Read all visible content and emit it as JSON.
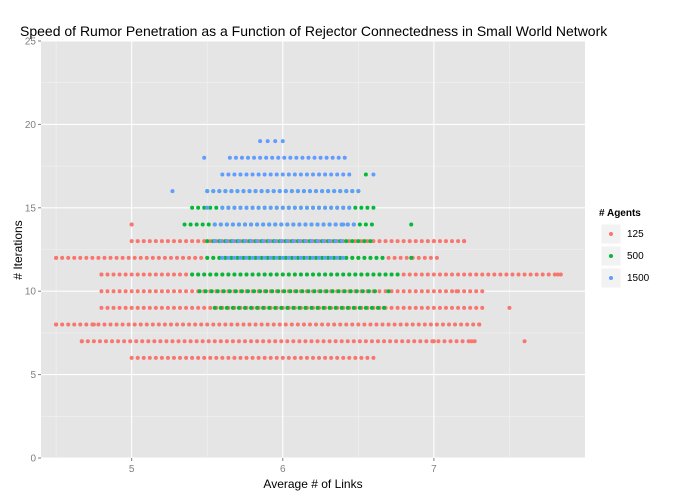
{
  "chart_data": {
    "type": "scatter",
    "title": "Speed of Rumor Penetration as a Function of Rejector Connectedness in Small World Network",
    "xlabel": "Average # of Links",
    "ylabel": "# Iterations",
    "xlim": [
      4.4,
      8.0
    ],
    "ylim": [
      0,
      25
    ],
    "x_ticks": [
      5,
      6,
      7
    ],
    "y_ticks": [
      0,
      5,
      10,
      15,
      20,
      25
    ],
    "grid": true,
    "legend": {
      "title": "# Agents",
      "placement": "right",
      "entries": [
        "125",
        "500",
        "1500"
      ]
    },
    "series": [
      {
        "name": "125",
        "color": "#F8766D",
        "bands": [
          {
            "y": 6,
            "x0": 5.0,
            "x1": 6.58
          },
          {
            "y": 7,
            "x0": 4.67,
            "x1": 7.25
          },
          {
            "y": 8,
            "x0": 4.5,
            "x1": 7.3
          },
          {
            "y": 9,
            "x0": 4.8,
            "x1": 7.3
          },
          {
            "y": 10,
            "x0": 4.8,
            "x1": 7.3
          },
          {
            "y": 11,
            "x0": 4.8,
            "x1": 7.82
          },
          {
            "y": 12,
            "x0": 4.5,
            "x1": 7.0
          },
          {
            "y": 13,
            "x0": 5.0,
            "x1": 7.2
          },
          {
            "y": 14,
            "x0": 5.0,
            "x1": 5.0
          }
        ],
        "points": [
          {
            "x": 4.5,
            "y": 12
          },
          {
            "x": 4.5,
            "y": 8
          },
          {
            "x": 4.67,
            "y": 7
          },
          {
            "x": 4.75,
            "y": 8
          },
          {
            "x": 4.8,
            "y": 11
          },
          {
            "x": 5.0,
            "y": 14
          },
          {
            "x": 7.0,
            "y": 13
          },
          {
            "x": 7.2,
            "y": 13
          },
          {
            "x": 7.82,
            "y": 11
          },
          {
            "x": 7.5,
            "y": 9
          },
          {
            "x": 7.6,
            "y": 7
          },
          {
            "x": 7.25,
            "y": 7
          },
          {
            "x": 7.15,
            "y": 10
          },
          {
            "x": 7.3,
            "y": 8
          },
          {
            "x": 7.0,
            "y": 7
          }
        ]
      },
      {
        "name": "500",
        "color": "#00BA38",
        "bands": [
          {
            "y": 9,
            "x0": 5.55,
            "x1": 6.65
          },
          {
            "y": 10,
            "x0": 5.45,
            "x1": 6.6
          },
          {
            "y": 11,
            "x0": 5.4,
            "x1": 6.75
          },
          {
            "y": 12,
            "x0": 5.5,
            "x1": 6.65
          },
          {
            "y": 13,
            "x0": 5.5,
            "x1": 6.6
          },
          {
            "y": 14,
            "x0": 5.35,
            "x1": 6.6
          },
          {
            "y": 15,
            "x0": 5.4,
            "x1": 6.6
          },
          {
            "y": 16,
            "x0": 5.5,
            "x1": 6.5
          }
        ],
        "points": [
          {
            "x": 6.85,
            "y": 14
          },
          {
            "x": 6.55,
            "y": 17
          },
          {
            "x": 6.85,
            "y": 12
          },
          {
            "x": 6.7,
            "y": 10
          }
        ]
      },
      {
        "name": "1500",
        "color": "#619CFF",
        "bands": [
          {
            "y": 12,
            "x0": 5.6,
            "x1": 6.4
          },
          {
            "y": 13,
            "x0": 5.55,
            "x1": 6.4
          },
          {
            "y": 14,
            "x0": 5.55,
            "x1": 6.45
          },
          {
            "y": 15,
            "x0": 5.6,
            "x1": 6.45
          },
          {
            "y": 16,
            "x0": 5.5,
            "x1": 6.45
          },
          {
            "y": 17,
            "x0": 5.6,
            "x1": 6.45
          },
          {
            "y": 18,
            "x0": 5.65,
            "x1": 6.4
          }
        ],
        "points": [
          {
            "x": 5.48,
            "y": 18
          },
          {
            "x": 5.27,
            "y": 16
          },
          {
            "x": 6.6,
            "y": 17
          },
          {
            "x": 5.85,
            "y": 19
          },
          {
            "x": 5.9,
            "y": 19
          },
          {
            "x": 5.95,
            "y": 19
          },
          {
            "x": 6.0,
            "y": 19
          },
          {
            "x": 6.5,
            "y": 16
          },
          {
            "x": 6.4,
            "y": 14
          },
          {
            "x": 5.5,
            "y": 15
          }
        ]
      }
    ]
  }
}
